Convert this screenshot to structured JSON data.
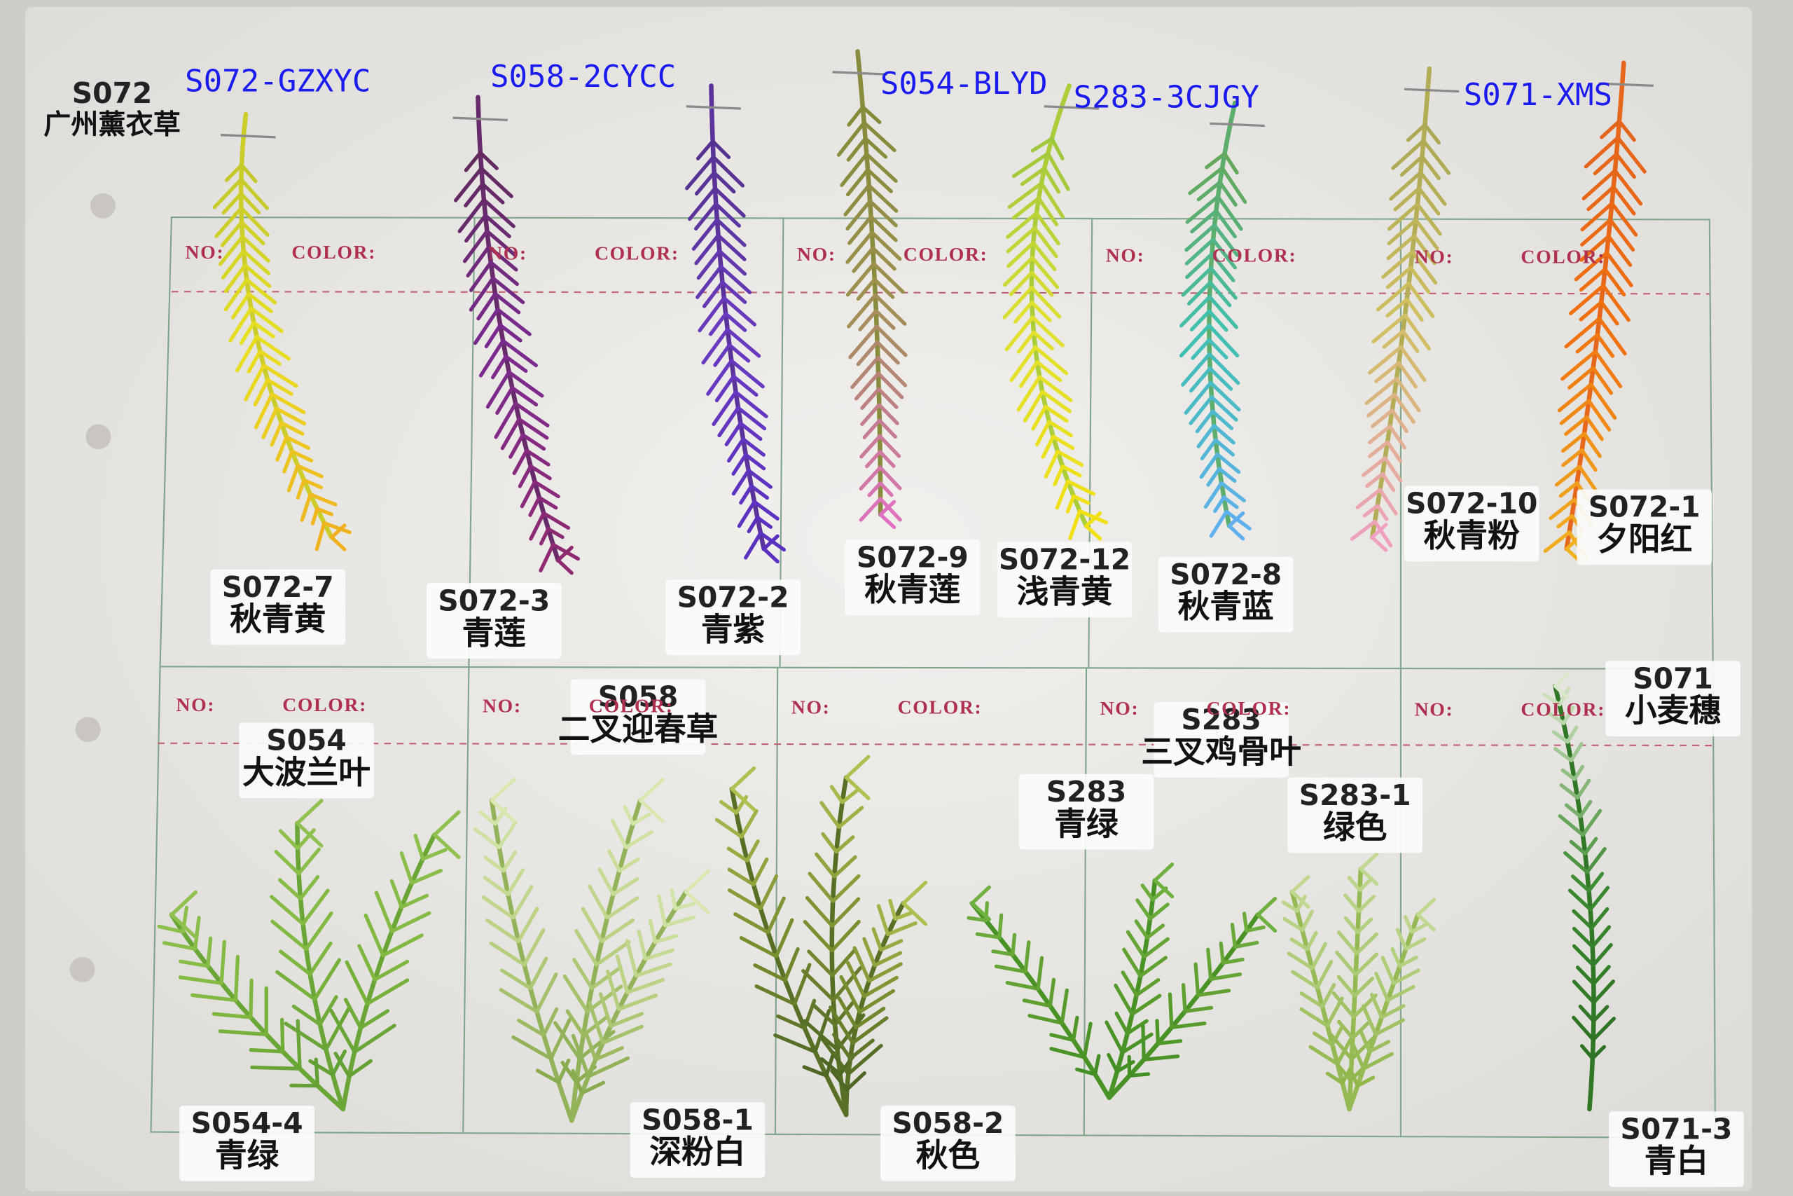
{
  "header": {
    "code": "S072",
    "name": "广州薰衣草"
  },
  "series_codes": [
    "S072-GZXYC",
    "S058-2CYCC",
    "S054-BLYD",
    "S283-3CJGY",
    "S071-XMS"
  ],
  "grid": {
    "rows": [
      [
        {
          "no": "NO:",
          "color": "COLOR:"
        },
        {
          "no": "NO:",
          "color": "COLOR:"
        },
        {
          "no": "NO:",
          "color": "COLOR:"
        },
        {
          "no": "NO:",
          "color": "COLOR:"
        },
        {
          "no": "NO:",
          "color": "COLOR:"
        }
      ],
      [
        {
          "no": "NO:",
          "color": "COLOR:"
        },
        {
          "no": "NO:",
          "color": "COLOR:"
        },
        {
          "no": "NO:",
          "color": "COLOR:"
        },
        {
          "no": "NO:",
          "color": "COLOR:"
        },
        {
          "no": "NO:",
          "color": "COLOR:"
        }
      ]
    ]
  },
  "samples_top": [
    {
      "code": "S072-7",
      "name": "秋青黄"
    },
    {
      "code": "S072-3",
      "name": "青莲"
    },
    {
      "code": "S072-2",
      "name": "青紫"
    },
    {
      "code": "S072-9",
      "name": "秋青莲"
    },
    {
      "code": "S072-12",
      "name": "浅青黄"
    },
    {
      "code": "S072-8",
      "name": "秋青蓝"
    },
    {
      "code": "S072-10",
      "name": "秋青粉"
    },
    {
      "code": "S072-1",
      "name": "夕阳红"
    }
  ],
  "groups": [
    {
      "code": "S054",
      "name": "大波兰叶"
    },
    {
      "code": "S058",
      "name": "二叉迎春草"
    },
    {
      "code": "S283",
      "name": "三叉鸡骨叶"
    },
    {
      "code": "S071",
      "name": "小麦穗"
    },
    {
      "code": "S283",
      "name": "青绿"
    },
    {
      "code": "S283-1",
      "name": "绿色"
    }
  ],
  "samples_bottom": [
    {
      "code": "S054-4",
      "name": "青绿"
    },
    {
      "code": "S058-1",
      "name": "深粉白"
    },
    {
      "code": "S058-2",
      "name": "秋色"
    },
    {
      "code": "S071-3",
      "name": "青白"
    }
  ]
}
